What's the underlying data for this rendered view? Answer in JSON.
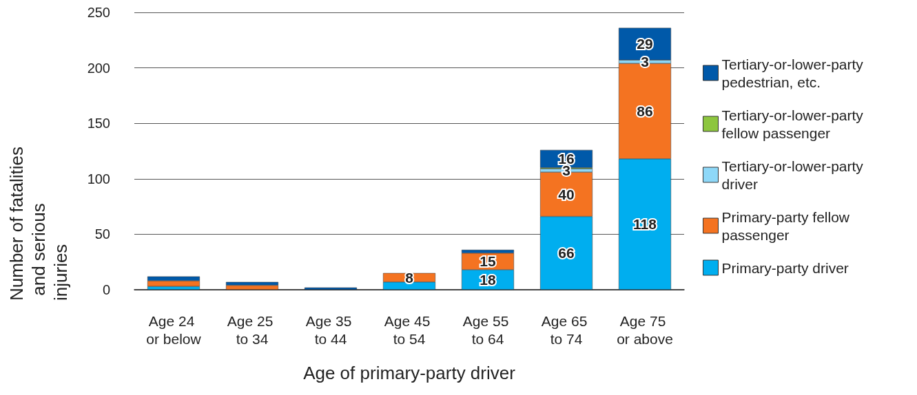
{
  "chart_data": {
    "type": "bar",
    "stacked": true,
    "xlabel": "Age of primary-party driver",
    "ylabel": "Number of fatalities and serious injuries",
    "categories": [
      "Age 24 or below",
      "Age 25 to 34",
      "Age 35 to 44",
      "Age 45 to 54",
      "Age 55 to 64",
      "Age 65 to 74",
      "Age 75 or above"
    ],
    "series": [
      {
        "name": "Primary-party driver",
        "color": "#00aeef",
        "values": [
          3,
          0,
          0,
          7,
          18,
          66,
          118
        ],
        "value_labels": [
          null,
          null,
          null,
          null,
          "18",
          "66",
          "118"
        ]
      },
      {
        "name": "Primary-party fellow passenger",
        "color": "#f47321",
        "values": [
          5,
          4,
          0,
          8,
          15,
          40,
          86
        ],
        "value_labels": [
          null,
          null,
          null,
          "8",
          "15",
          "40",
          "86"
        ]
      },
      {
        "name": "Tertiary-or-lower-party driver",
        "color": "#8ed8f8",
        "values": [
          0,
          0,
          0,
          0,
          0,
          3,
          3
        ],
        "value_labels": [
          null,
          null,
          null,
          null,
          null,
          "3",
          "3"
        ]
      },
      {
        "name": "Tertiary-or-lower-party fellow passenger",
        "color": "#8dc63f",
        "values": [
          0,
          0,
          0,
          0,
          0,
          1,
          0
        ]
      },
      {
        "name": "Tertiary-or-lower-party pedestrian, etc.",
        "color": "#0059a9",
        "values": [
          4,
          3,
          2,
          0,
          3,
          16,
          29
        ],
        "value_labels": [
          null,
          null,
          null,
          null,
          null,
          "16",
          "29"
        ]
      }
    ],
    "ylim": [
      0,
      250
    ],
    "yticks": [
      0,
      50,
      100,
      150,
      200,
      250
    ],
    "grid": "y",
    "legend": "right"
  }
}
